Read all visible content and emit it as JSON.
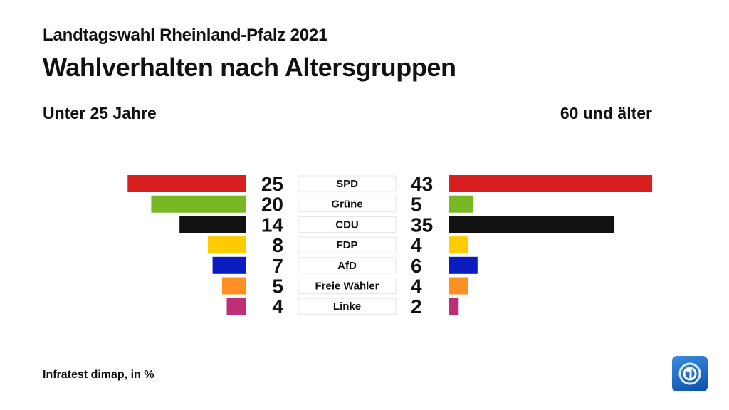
{
  "header": {
    "subtitle": "Landtagswahl Rheinland-Pfalz 2021",
    "title": "Wahlverhalten nach Altersgruppen"
  },
  "groups": {
    "left": "Unter 25 Jahre",
    "right": "60 und älter"
  },
  "footer": {
    "source": "Infratest dimap, in %"
  },
  "logo": {
    "icon": "ard-tagesschau-logo-icon"
  },
  "chart_data": {
    "type": "bar",
    "categories": [
      "SPD",
      "Grüne",
      "CDU",
      "FDP",
      "AfD",
      "Freie Wähler",
      "Linke"
    ],
    "series": [
      {
        "name": "Unter 25 Jahre",
        "values": [
          25,
          20,
          14,
          8,
          7,
          5,
          4
        ]
      },
      {
        "name": "60 und älter",
        "values": [
          43,
          5,
          35,
          4,
          6,
          4,
          2
        ]
      }
    ],
    "colors": [
      "#d71f1f",
      "#78b822",
      "#111111",
      "#ffcc00",
      "#0a1bbf",
      "#ff9124",
      "#be3076"
    ]
  }
}
